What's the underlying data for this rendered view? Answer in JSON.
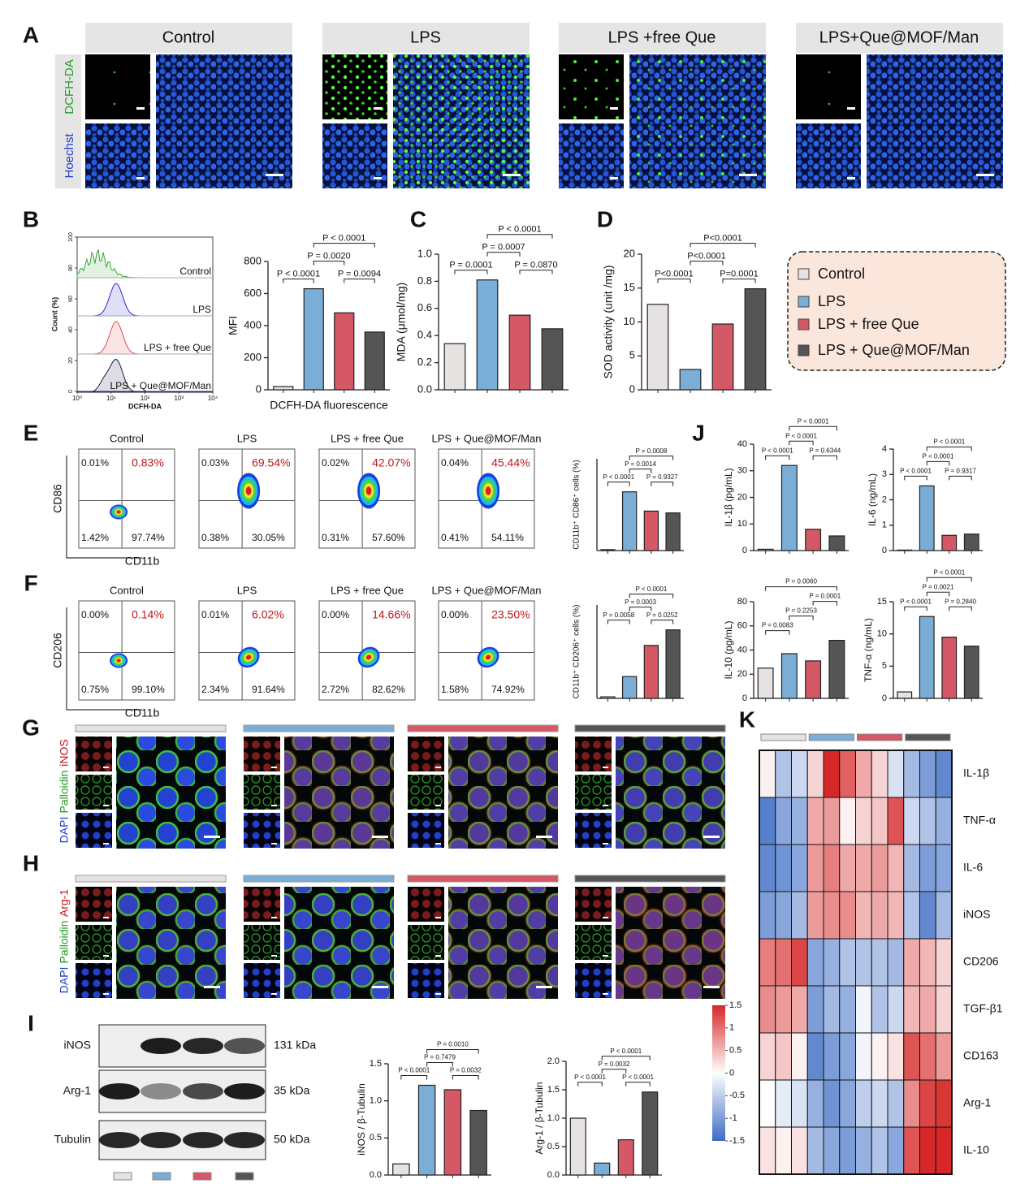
{
  "panel_letters": [
    "A",
    "B",
    "C",
    "D",
    "E",
    "F",
    "G",
    "H",
    "I",
    "J",
    "K"
  ],
  "panel_a": {
    "groups": [
      "Control",
      "LPS",
      "LPS +free Que",
      "LPS+Que@MOF/Man"
    ],
    "stains": [
      "DCFH-DA",
      "Hoechst"
    ]
  },
  "legend": {
    "items": [
      {
        "name": "Control",
        "color": "#e6e2e2"
      },
      {
        "name": "LPS",
        "color": "#7aaed6"
      },
      {
        "name": "LPS + free Que",
        "color": "#d45866"
      },
      {
        "name": "LPS + Que@MOF/Man",
        "color": "#555555"
      }
    ]
  },
  "histogram": {
    "labels": [
      "Control",
      "LPS",
      "LPS + free Que",
      "LPS + Que@MOF/Man"
    ],
    "colors": [
      "#3aa83a",
      "#2b2bd9",
      "#d9534f",
      "#1a1a4a"
    ],
    "xlabel": "DCFH-DA",
    "ylabel": "Count (%)",
    "log": true,
    "xlim": [
      1,
      10000
    ],
    "xticks": [
      {
        "value": 1,
        "label": "10⁰"
      },
      {
        "value": 10,
        "label": "10¹"
      },
      {
        "value": 100,
        "label": "10²"
      },
      {
        "value": 1000,
        "label": "10³"
      },
      {
        "value": 10000,
        "label": "10⁴"
      }
    ],
    "ylim": [
      0,
      100
    ],
    "yticks": [
      0,
      20,
      40,
      60,
      80,
      100
    ]
  },
  "flow": [
    {
      "y_marker": "CD86",
      "x_marker": "CD11b",
      "plots": [
        {
          "title": "Control",
          "upper_left": "0.01%",
          "upper_right": "0.83%",
          "lower_left": "1.42%",
          "lower_right": "97.74%"
        },
        {
          "title": "LPS",
          "upper_left": "0.03%",
          "upper_right": "69.54%",
          "lower_left": "0.38%",
          "lower_right": "30.05%"
        },
        {
          "title": "LPS + free Que",
          "upper_left": "0.02%",
          "upper_right": "42.07%",
          "lower_left": "0.31%",
          "lower_right": "57.60%"
        },
        {
          "title": "LPS + Que@MOF/Man",
          "upper_left": "0.04%",
          "upper_right": "45.44%",
          "lower_left": "0.41%",
          "lower_right": "54.11%"
        }
      ]
    },
    {
      "y_marker": "CD206",
      "x_marker": "CD11b",
      "plots": [
        {
          "title": "Control",
          "upper_left": "0.00%",
          "upper_right": "0.14%",
          "lower_left": "0.75%",
          "lower_right": "99.10%"
        },
        {
          "title": "LPS",
          "upper_left": "0.01%",
          "upper_right": "6.02%",
          "lower_left": "2.34%",
          "lower_right": "91.64%"
        },
        {
          "title": "LPS + free Que",
          "upper_left": "0.00%",
          "upper_right": "14.66%",
          "lower_left": "2.72%",
          "lower_right": "82.62%"
        },
        {
          "title": "LPS + Que@MOF/Man",
          "upper_left": "0.00%",
          "upper_right": "23.50%",
          "lower_left": "1.58%",
          "lower_right": "74.92%"
        }
      ]
    }
  ],
  "panel_g": {
    "stains": [
      "DAPI",
      "Palloidin",
      "iNOS"
    ]
  },
  "panel_h": {
    "stains": [
      "DAPI",
      "Palloidin",
      "Arg-1"
    ]
  },
  "western": {
    "bands": [
      {
        "protein": "iNOS",
        "size": "131 kDa"
      },
      {
        "protein": "Arg-1",
        "size": "35 kDa"
      },
      {
        "protein": "Tubulin",
        "size": "50 kDa"
      }
    ]
  },
  "chart_data": [
    {
      "type": "bar",
      "ylabel": "MFI",
      "xlabel": "DCFH-DA fluorescence",
      "values": [
        20,
        630,
        480,
        360
      ],
      "colors": [
        "#e6e2e2",
        "#7aaed6",
        "#d45866",
        "#555555"
      ],
      "ylim": [
        0,
        800
      ],
      "yticks": [
        0,
        200,
        400,
        600,
        800
      ],
      "annotations": [
        "P < 0.0001",
        "P = 0.0020",
        "P < 0.0001",
        "P = 0.0094"
      ]
    },
    {
      "type": "bar",
      "ylabel": "MDA (μmol/mg)",
      "values": [
        0.34,
        0.81,
        0.55,
        0.45
      ],
      "colors": [
        "#e6e2e2",
        "#7aaed6",
        "#d45866",
        "#555555"
      ],
      "ylim": [
        0,
        1
      ],
      "yticks": [
        {
          "value": 0,
          "label": "0.0"
        },
        0.2,
        0.4,
        0.6,
        0.8,
        {
          "value": 1,
          "label": "1.0"
        }
      ],
      "annotations": [
        "P = 0.0001",
        "P = 0.0007",
        "P < 0.0001",
        "P = 0.0870"
      ]
    },
    {
      "type": "bar",
      "ylabel": "SOD activity (unit /mg)",
      "values": [
        12.6,
        3.0,
        9.7,
        14.9
      ],
      "colors": [
        "#e6e2e2",
        "#7aaed6",
        "#d45866",
        "#555555"
      ],
      "ylim": [
        0,
        20
      ],
      "yticks": [
        0,
        5,
        10,
        15,
        20
      ],
      "annotations": [
        "P<0.0001",
        "P<0.0001",
        "P<0.0001",
        "P=0.0001"
      ]
    },
    {
      "type": "bar",
      "ylabel": "CD11b⁺ CD86⁺ cells (%)",
      "values": [
        1,
        64,
        43,
        41
      ],
      "colors": [
        "#e6e2e2",
        "#7aaed6",
        "#d45866",
        "#555555"
      ],
      "ylim": [
        0,
        100
      ],
      "annotations": [
        "P < 0.0001",
        "P = 0.0014",
        "P = 0.0008",
        "P = 0.9327"
      ]
    },
    {
      "type": "bar",
      "ylabel": "CD11b⁺ CD206⁺ cells (%)",
      "values": [
        0.5,
        7,
        17,
        22
      ],
      "colors": [
        "#e6e2e2",
        "#7aaed6",
        "#d45866",
        "#555555"
      ],
      "ylim": [
        0,
        30
      ],
      "annotations": [
        "P = 0.0058",
        "P = 0.0003",
        "P < 0.0001",
        "P = 0.0252"
      ]
    },
    {
      "type": "bar",
      "ylabel": "IL-1β (pg/mL)",
      "values": [
        0.5,
        32,
        8,
        5.5
      ],
      "colors": [
        "#e6e2e2",
        "#7aaed6",
        "#d45866",
        "#555555"
      ],
      "ylim": [
        0,
        40
      ],
      "yticks": [
        0,
        10,
        20,
        30,
        40
      ],
      "annotations": [
        "P < 0.0001",
        "P < 0.0001",
        "P < 0.0001",
        "P = 0.6344"
      ]
    },
    {
      "type": "bar",
      "ylabel": "IL-6 (ng/mL)",
      "values": [
        0.02,
        2.55,
        0.6,
        0.65
      ],
      "colors": [
        "#e6e2e2",
        "#7aaed6",
        "#d45866",
        "#555555"
      ],
      "ylim": [
        0,
        4
      ],
      "yticks": [
        0,
        1,
        2,
        3,
        4
      ],
      "annotations": [
        "P < 0.0001",
        "P < 0.0001",
        "P < 0.0001",
        "P = 0.9317"
      ]
    },
    {
      "type": "bar",
      "ylabel": "IL-10 (pg/mL)",
      "values": [
        25,
        37,
        31,
        48
      ],
      "colors": [
        "#e6e2e2",
        "#7aaed6",
        "#d45866",
        "#555555"
      ],
      "ylim": [
        0,
        80
      ],
      "yticks": [
        0,
        20,
        40,
        60,
        80
      ],
      "annotations": [
        "P = 0.0083",
        "P = 0.2253",
        "P = 0.0001",
        "P = 0.0060"
      ]
    },
    {
      "type": "bar",
      "ylabel": "TNF-α (ng/mL)",
      "values": [
        1,
        12.7,
        9.5,
        8.1
      ],
      "colors": [
        "#e6e2e2",
        "#7aaed6",
        "#d45866",
        "#555555"
      ],
      "ylim": [
        0,
        15
      ],
      "yticks": [
        0,
        5,
        10,
        15
      ],
      "annotations": [
        "P < 0.0001",
        "P = 0.0021",
        "P < 0.0001",
        "P = 0.2840"
      ]
    },
    {
      "type": "bar",
      "ylabel": "iNOS / β-Tubulin",
      "values": [
        0.15,
        1.21,
        1.15,
        0.87
      ],
      "colors": [
        "#e6e2e2",
        "#7aaed6",
        "#d45866",
        "#555555"
      ],
      "ylim": [
        0,
        1.5
      ],
      "yticks": [
        {
          "value": 0,
          "label": "0.0"
        },
        0.5,
        {
          "value": 1,
          "label": "1.0"
        },
        1.5
      ],
      "annotations": [
        "P < 0.0001",
        "P = 0.7479",
        "P = 0.0010",
        "P = 0.0032"
      ]
    },
    {
      "type": "bar",
      "ylabel": "Arg-1 / β-Tubulin",
      "values": [
        1.0,
        0.21,
        0.62,
        1.46
      ],
      "colors": [
        "#e6e2e2",
        "#7aaed6",
        "#d45866",
        "#555555"
      ],
      "ylim": [
        0,
        2
      ],
      "yticks": [
        {
          "value": 0,
          "label": "0.0"
        },
        0.5,
        {
          "value": 1,
          "label": "1.0"
        },
        1.5,
        {
          "value": 2,
          "label": "2.0"
        }
      ],
      "annotations": [
        "P < 0.0001",
        "P = 0.0032",
        "P < 0.0001",
        "P < 0.0001"
      ]
    },
    {
      "type": "heatmap",
      "rows": [
        "IL-1β",
        "TNF-α",
        "IL-6",
        "iNOS",
        "CD206",
        "TGF-β1",
        "CD163",
        "Arg-1",
        "IL-10"
      ],
      "zlim": [
        -1.5,
        1.5
      ],
      "colorbar_ticks": [
        1.5,
        1,
        0.5,
        0,
        -0.5,
        -1,
        -1.5
      ],
      "values": [
        [
          0.1,
          -0.6,
          -0.4,
          0.3,
          1.6,
          1.1,
          0.6,
          0.3,
          -0.3,
          -0.7,
          -1.0,
          -1.2
        ],
        [
          -1.3,
          -0.9,
          -0.8,
          0.6,
          0.7,
          0.1,
          0.3,
          0.4,
          1.2,
          -0.4,
          -0.6,
          -0.8
        ],
        [
          -1.2,
          -1.1,
          -0.9,
          0.7,
          0.9,
          0.6,
          0.6,
          0.7,
          0.5,
          -0.7,
          -1.0,
          -0.9
        ],
        [
          -1.0,
          -0.9,
          -0.7,
          0.7,
          0.8,
          0.8,
          0.5,
          0.6,
          0.5,
          -0.6,
          -1.2,
          -0.7
        ],
        [
          0.9,
          1.0,
          1.3,
          -0.9,
          -0.8,
          -0.6,
          -0.6,
          -0.6,
          -0.7,
          0.6,
          0.5,
          0.3
        ],
        [
          0.8,
          0.7,
          0.6,
          -1.0,
          -0.7,
          -0.8,
          -0.1,
          -0.6,
          -0.4,
          0.5,
          0.6,
          0.3
        ],
        [
          0.3,
          0.4,
          0.1,
          -1.2,
          -1.0,
          -0.9,
          -0.1,
          0.1,
          0.2,
          1.2,
          1.0,
          0.7
        ],
        [
          0.0,
          -0.2,
          -0.3,
          -0.8,
          -1.1,
          -0.9,
          -0.5,
          -0.4,
          -0.6,
          0.8,
          1.3,
          1.4
        ],
        [
          0.2,
          0.1,
          0.2,
          -0.7,
          -0.9,
          -1.0,
          -0.8,
          -0.6,
          -0.9,
          1.2,
          1.5,
          1.5
        ]
      ]
    }
  ]
}
